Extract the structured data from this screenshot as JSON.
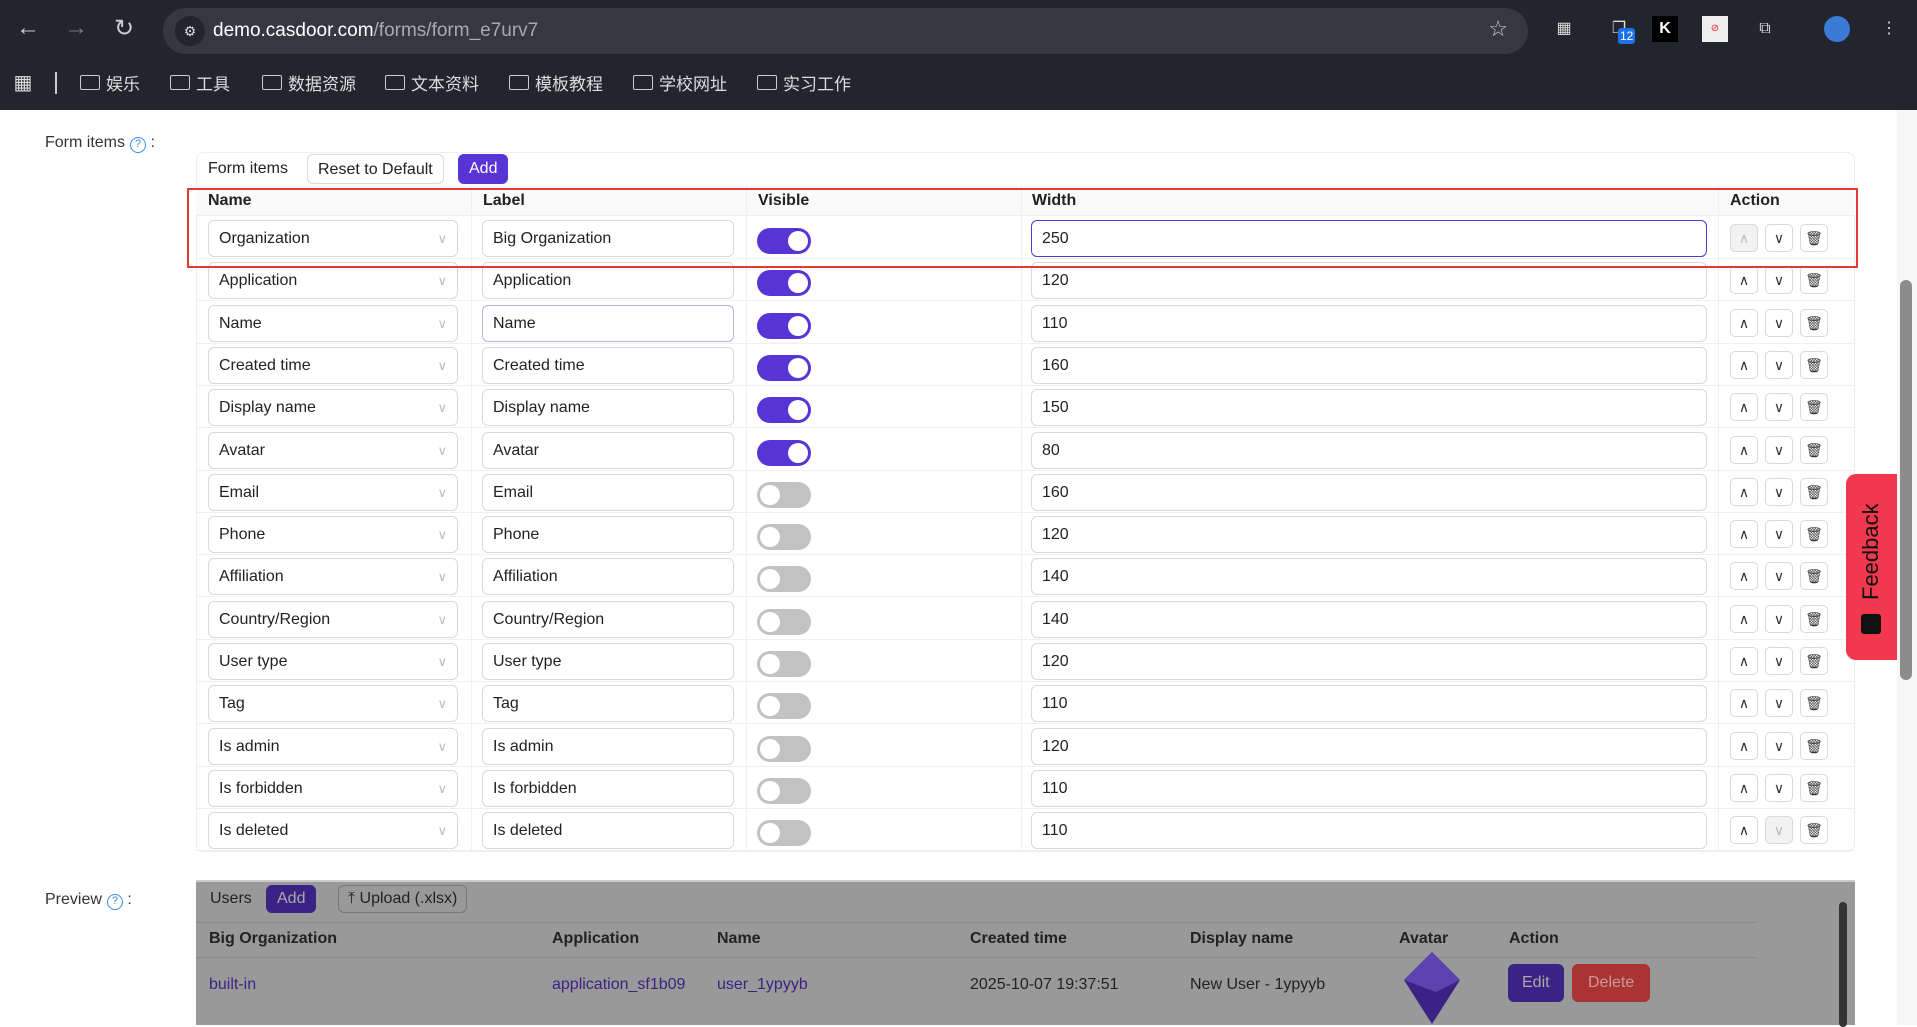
{
  "browser": {
    "url_host": "demo.casdoor.com",
    "url_path": "/forms/form_e7urv7",
    "ext_badge": "12",
    "bookmarks": [
      "娱乐",
      "工具",
      "数据资源",
      "文本资料",
      "模板教程",
      "学校网址",
      "实习工作"
    ]
  },
  "form_items": {
    "label": "Form items",
    "toolbar_title": "Form items",
    "reset_label": "Reset to Default",
    "add_label": "Add",
    "columns": [
      "Name",
      "Label",
      "Visible",
      "Width",
      "Action"
    ],
    "rows": [
      {
        "name": "Organization",
        "label": "Big Organization",
        "visible": true,
        "width": "250"
      },
      {
        "name": "Application",
        "label": "Application",
        "visible": true,
        "width": "120"
      },
      {
        "name": "Name",
        "label": "Name",
        "visible": true,
        "width": "110"
      },
      {
        "name": "Created time",
        "label": "Created time",
        "visible": true,
        "width": "160"
      },
      {
        "name": "Display name",
        "label": "Display name",
        "visible": true,
        "width": "150"
      },
      {
        "name": "Avatar",
        "label": "Avatar",
        "visible": true,
        "width": "80"
      },
      {
        "name": "Email",
        "label": "Email",
        "visible": false,
        "width": "160"
      },
      {
        "name": "Phone",
        "label": "Phone",
        "visible": false,
        "width": "120"
      },
      {
        "name": "Affiliation",
        "label": "Affiliation",
        "visible": false,
        "width": "140"
      },
      {
        "name": "Country/Region",
        "label": "Country/Region",
        "visible": false,
        "width": "140"
      },
      {
        "name": "User type",
        "label": "User type",
        "visible": false,
        "width": "120"
      },
      {
        "name": "Tag",
        "label": "Tag",
        "visible": false,
        "width": "110"
      },
      {
        "name": "Is admin",
        "label": "Is admin",
        "visible": false,
        "width": "120"
      },
      {
        "name": "Is forbidden",
        "label": "Is forbidden",
        "visible": false,
        "width": "110"
      },
      {
        "name": "Is deleted",
        "label": "Is deleted",
        "visible": false,
        "width": "110"
      }
    ]
  },
  "preview": {
    "label": "Preview",
    "title": "Users",
    "add_label": "Add",
    "upload_label": "Upload (.xlsx)",
    "columns": [
      "Big Organization",
      "Application",
      "Name",
      "Created time",
      "Display name",
      "Avatar",
      "Action"
    ],
    "row": {
      "organization": "built-in",
      "application": "application_sf1b09",
      "name": "user_1ypyyb",
      "created_time": "2025-10-07 19:37:51",
      "display_name": "New User - 1ypyyb"
    },
    "edit_label": "Edit",
    "delete_label": "Delete"
  },
  "feedback": {
    "label": "Feedback"
  },
  "colors": {
    "accent": "#5734d3",
    "highlight": "#e53935",
    "feedback": "#f2384e"
  }
}
